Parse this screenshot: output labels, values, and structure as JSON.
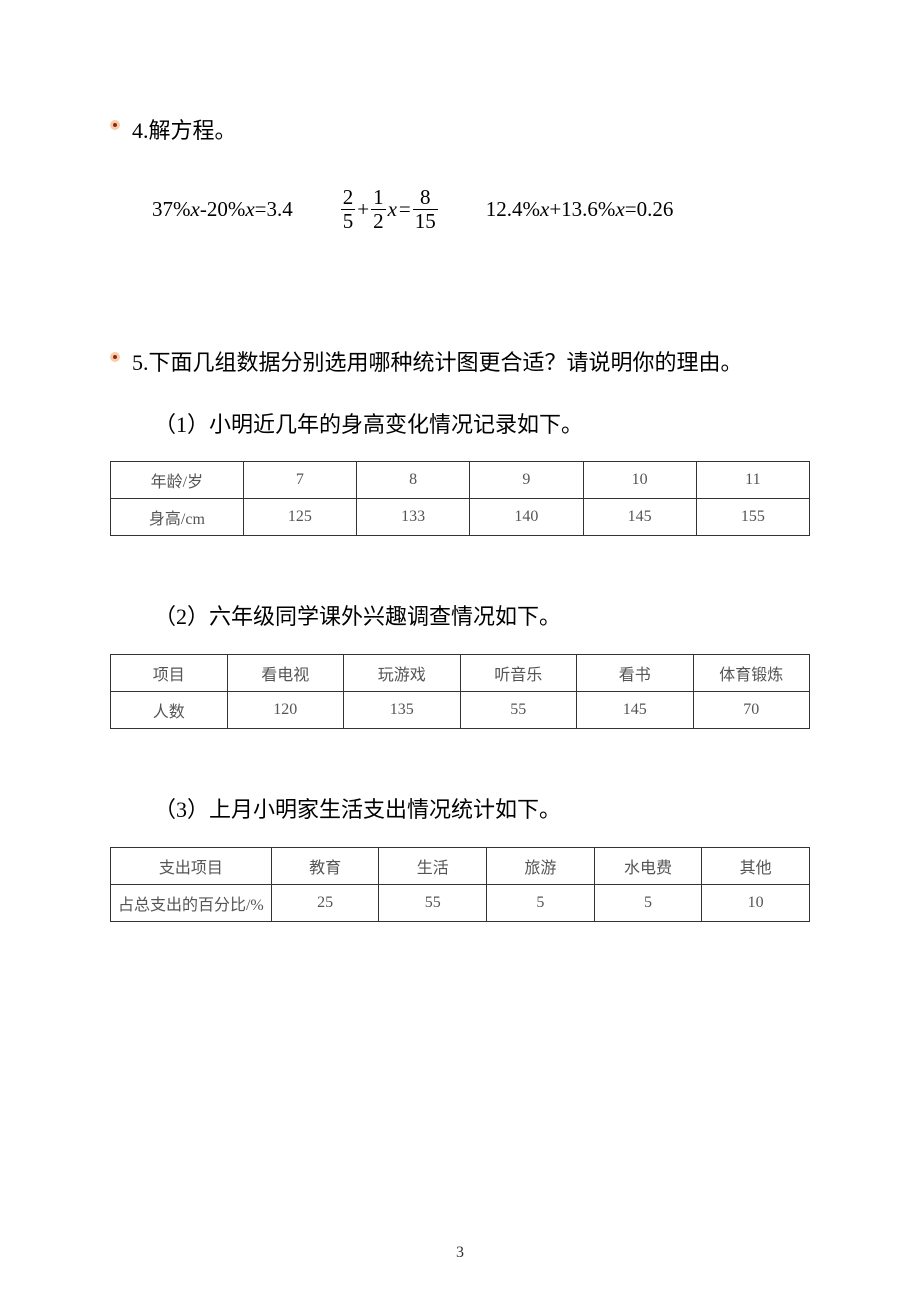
{
  "bullet": {
    "outer_color": "#f4cfa8",
    "inner_color": "#a02020"
  },
  "q4": {
    "title": "4.解方程。",
    "eq1_left": "37%",
    "eq1_mid": "-20%",
    "eq1_right": "=3.4",
    "eq2_f1_num": "2",
    "eq2_f1_den": "5",
    "eq2_plus": "+",
    "eq2_f2_num": "1",
    "eq2_f2_den": "2",
    "eq2_eq": "=",
    "eq2_f3_num": "8",
    "eq2_f3_den": "15",
    "eq3_left": "12.4%",
    "eq3_mid": "+13.6%",
    "eq3_right": "=0.26"
  },
  "q5": {
    "title": "5.下面几组数据分别选用哪种统计图更合适？请说明你的理由。",
    "part1": {
      "prompt": "（1）小明近几年的身高变化情况记录如下。",
      "table": {
        "columns": [
          "年龄/岁",
          "7",
          "8",
          "9",
          "10",
          "11"
        ],
        "rows": [
          [
            "身高/cm",
            "125",
            "133",
            "140",
            "145",
            "155"
          ]
        ],
        "col_widths": [
          "19%",
          "16.2%",
          "16.2%",
          "16.2%",
          "16.2%",
          "16.2%"
        ]
      }
    },
    "part2": {
      "prompt": "（2）六年级同学课外兴趣调查情况如下。",
      "table": {
        "columns": [
          "项目",
          "看电视",
          "玩游戏",
          "听音乐",
          "看书",
          "体育锻炼"
        ],
        "rows": [
          [
            "人数",
            "120",
            "135",
            "55",
            "145",
            "70"
          ]
        ],
        "col_widths": [
          "16.6%",
          "16.6%",
          "16.6%",
          "16.6%",
          "16.6%",
          "16.6%"
        ]
      }
    },
    "part3": {
      "prompt": "（3）上月小明家生活支出情况统计如下。",
      "table": {
        "columns": [
          "支出项目",
          "教育",
          "生活",
          "旅游",
          "水电费",
          "其他"
        ],
        "rows": [
          [
            "占总支出的百分比/%",
            "25",
            "55",
            "5",
            "5",
            "10"
          ]
        ],
        "col_widths": [
          "23%",
          "15.4%",
          "15.4%",
          "15.4%",
          "15.4%",
          "15.4%"
        ]
      }
    }
  },
  "page_number": "3",
  "text_color": "#000000",
  "table_text_color": "#555555",
  "table_border_color": "#333333"
}
